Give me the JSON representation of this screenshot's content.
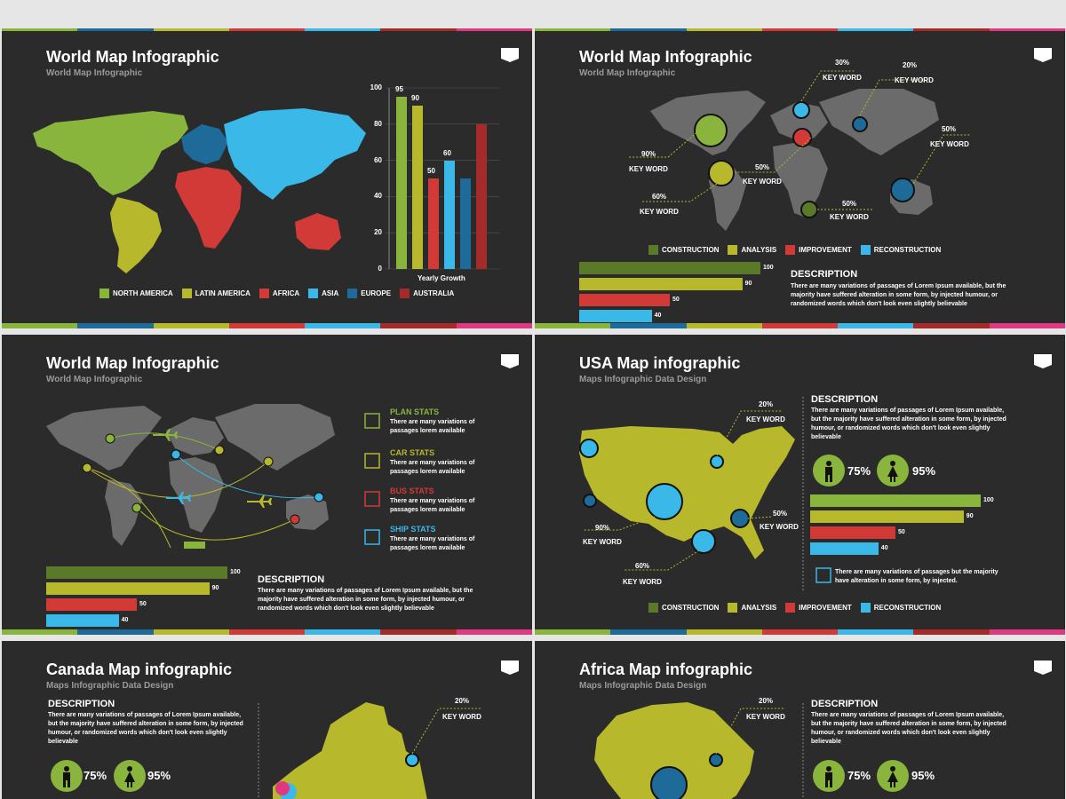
{
  "colors": {
    "green": "#8ab53c",
    "olive": "#b8b82c",
    "red": "#d13a37",
    "cyan": "#3ab8e8",
    "blue": "#1e6a98",
    "darkred": "#a52a2a",
    "magenta": "#e0397f",
    "grey": "#6b6b6b",
    "dkgreen": "#5a7a2a"
  },
  "slide1": {
    "title": "World Map Infographic",
    "subtitle": "World Map Infographic",
    "chart_data": {
      "type": "bar",
      "xlabel": "Yearly Growth",
      "ylim": [
        0,
        100
      ],
      "ticks": [
        "100",
        "80",
        "60",
        "40",
        "20",
        "0"
      ],
      "values": [
        95,
        90,
        50,
        60,
        50,
        80
      ],
      "value_labels": [
        "95",
        "90",
        "50",
        "60",
        "",
        ""
      ],
      "colors": [
        "#8ab53c",
        "#b8b82c",
        "#d13a37",
        "#3ab8e8",
        "#1e6a98",
        "#a52a2a"
      ]
    },
    "legend": [
      "NORTH AMERICA",
      "LATIN AMERICA",
      "AFRICA",
      "ASIA",
      "EUROPE",
      "AUSTRALIA"
    ]
  },
  "slide2": {
    "title": "World Map Infographic",
    "subtitle": "World Map Infographic",
    "callouts": [
      {
        "pct": "30%",
        "kw": "KEY WORD"
      },
      {
        "pct": "20%",
        "kw": "KEY WORD"
      },
      {
        "pct": "50%",
        "kw": "KEY WORD"
      },
      {
        "pct": "90%",
        "kw": "KEY WORD"
      },
      {
        "pct": "50%",
        "kw": "KEY WORD"
      },
      {
        "pct": "60%",
        "kw": "KEY WORD"
      },
      {
        "pct": "50%",
        "kw": "KEY WORD"
      }
    ],
    "legend": [
      "CONSTRUCTION",
      "ANALYSIS",
      "IMPROVEMENT",
      "RECONSTRUCTION"
    ],
    "bars": [
      {
        "value": 100,
        "label": "100"
      },
      {
        "value": 90,
        "label": "90"
      },
      {
        "value": 50,
        "label": "50"
      },
      {
        "value": 40,
        "label": "40"
      }
    ],
    "desc_title": "DESCRIPTION",
    "desc_text": "There are many variations of passages of Lorem Ipsum available, but the majority have suffered alteration in some form, by injected humour, or randomized words which don't look even slightly believable"
  },
  "slide3": {
    "title": "World Map Infographic",
    "subtitle": "World Map Infographic",
    "stats": [
      {
        "title": "PLAN STATS",
        "text": "There are many variations of passages lorem available"
      },
      {
        "title": "CAR STATS",
        "text": "There are many variations of passages lorem available"
      },
      {
        "title": "BUS STATS",
        "text": "There are many variations of passages lorem available"
      },
      {
        "title": "SHIP STATS",
        "text": "There are many variations of passages lorem available"
      }
    ],
    "bars": [
      {
        "value": 100,
        "label": "100"
      },
      {
        "value": 90,
        "label": "90"
      },
      {
        "value": 50,
        "label": "50"
      },
      {
        "value": 40,
        "label": "40"
      }
    ],
    "desc_title": "DESCRIPTION",
    "desc_text": "There are many variations of passages of Lorem Ipsum available, but the majority have suffered alteration in some form, by injected humour, or randomized words which don't look even slightly believable"
  },
  "slide4": {
    "title": "USA Map infographic",
    "subtitle": "Maps Infographic Data Design",
    "callouts": [
      {
        "pct": "20%",
        "kw": "KEY WORD"
      },
      {
        "pct": "50%",
        "kw": "KEY WORD"
      },
      {
        "pct": "90%",
        "kw": "KEY WORD"
      },
      {
        "pct": "60%",
        "kw": "KEY WORD"
      }
    ],
    "desc_title": "DESCRIPTION",
    "desc_text": "There are many variations of passages of Lorem Ipsum available, but the majority have suffered alteration in some form, by injected humour, or randomized words which don't look even slightly believable",
    "male_pct": "75%",
    "female_pct": "95%",
    "bars": [
      {
        "value": 100,
        "label": "100"
      },
      {
        "value": 90,
        "label": "90"
      },
      {
        "value": 50,
        "label": "50"
      },
      {
        "value": 40,
        "label": "40"
      }
    ],
    "note": "There are many variations of passages but the majority have alteration in some form, by injected.",
    "legend": [
      "CONSTRUCTION",
      "ANALYSIS",
      "IMPROVEMENT",
      "RECONSTRUCTION"
    ]
  },
  "slide5": {
    "title": "Canada Map infographic",
    "subtitle": "Maps Infographic Data Design",
    "desc_title": "DESCRIPTION",
    "desc_text": "There are many variations of passages of Lorem Ipsum available, but the majority have suffered alteration in some form, by injected humour, or randomized words which don't look even slightly believable",
    "male_pct": "75%",
    "female_pct": "95%",
    "callouts": [
      {
        "pct": "20%",
        "kw": "KEY WORD"
      }
    ]
  },
  "slide6": {
    "title": "Africa Map infographic",
    "subtitle": "Maps Infographic Data Design",
    "desc_title": "DESCRIPTION",
    "desc_text": "There are many variations of passages of Lorem Ipsum available, but the majority have suffered alteration in some form, by injected humour, or randomized words which don't look even slightly believable",
    "male_pct": "75%",
    "female_pct": "95%",
    "callouts": [
      {
        "pct": "20%",
        "kw": "KEY WORD"
      }
    ]
  }
}
